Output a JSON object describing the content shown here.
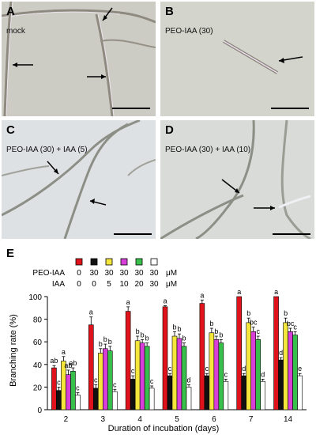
{
  "panels": [
    {
      "letter": "A",
      "caption": "mock"
    },
    {
      "letter": "B",
      "caption": "PEO-IAA (30)"
    },
    {
      "letter": "C",
      "caption": "PEO-IAA (30)  + IAA (5)"
    },
    {
      "letter": "D",
      "caption": "PEO-IAA (30)  + IAA (10)"
    }
  ],
  "chart_letter": "E",
  "chart_data": {
    "type": "bar",
    "ylabel": "Branching rate (%)",
    "xlabel": "Duration of incubation  (days)",
    "ylim": [
      0,
      100
    ],
    "yticks": [
      0,
      20,
      40,
      60,
      80,
      100
    ],
    "categories": [
      "2",
      "3",
      "4",
      "5",
      "6",
      "7",
      "14"
    ],
    "legend": {
      "rows": [
        {
          "label": "PEO-IAA",
          "values": [
            "0",
            "30",
            "30",
            "30",
            "30",
            "30"
          ],
          "unit": "μM"
        },
        {
          "label": "IAA",
          "values": [
            "0",
            "0",
            "5",
            "10",
            "20",
            "30"
          ],
          "unit": "μM"
        }
      ]
    },
    "series": [
      {
        "color": "#e0121b",
        "values": [
          37,
          75,
          87,
          91,
          94,
          100,
          100
        ],
        "errors": [
          2,
          7,
          4,
          1,
          3,
          0,
          0
        ],
        "letters": [
          "ab",
          "a",
          "a",
          "a",
          "a",
          "a",
          "a"
        ]
      },
      {
        "color": "#111111",
        "values": [
          17,
          19,
          27,
          30,
          30,
          30,
          44
        ],
        "errors": [
          3,
          3,
          3,
          2,
          2,
          2,
          2
        ],
        "letters": [
          "c",
          "c",
          "c",
          "c",
          "c",
          "d",
          "d"
        ]
      },
      {
        "color": "#f5e63c",
        "values": [
          43,
          50,
          61,
          65,
          68,
          77,
          77
        ],
        "errors": [
          4,
          4,
          4,
          4,
          4,
          4,
          4
        ],
        "letters": [
          "a",
          "b",
          "b",
          "b",
          "b",
          "b",
          "b"
        ]
      },
      {
        "color": "#d83ed8",
        "values": [
          31,
          54,
          59,
          63,
          62,
          69,
          69
        ],
        "errors": [
          4,
          4,
          3,
          4,
          3,
          4,
          3
        ],
        "letters": [
          "ab",
          "b",
          "b",
          "b",
          "b",
          "bc",
          "bc"
        ]
      },
      {
        "color": "#37c14a",
        "values": [
          34,
          52,
          56,
          56,
          59,
          62,
          66
        ],
        "errors": [
          3,
          4,
          3,
          3,
          3,
          3,
          3
        ],
        "letters": [
          "ab",
          "b",
          "b",
          "b",
          "b",
          "c",
          "c"
        ]
      },
      {
        "color": "#ffffff",
        "values": [
          13,
          16,
          19,
          20,
          25,
          25,
          30
        ],
        "errors": [
          2,
          2,
          2,
          2,
          2,
          2,
          2
        ],
        "letters": [
          "c",
          "c",
          "c",
          "d",
          "c",
          "d",
          "e"
        ]
      }
    ]
  },
  "colors": {
    "bar_outline": "#000000",
    "micrograph_bg": "#cbcdc4"
  }
}
